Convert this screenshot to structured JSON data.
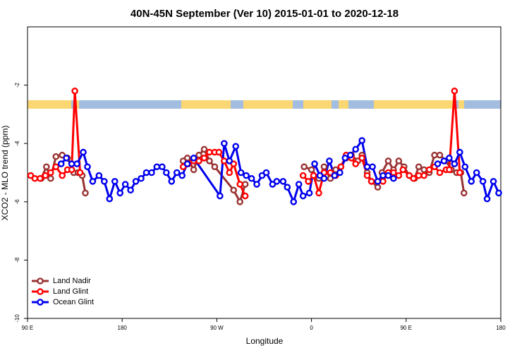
{
  "chart_data": {
    "type": "line",
    "title": "40N-45N September (Ver 10)   2015-01-01 to 2020-12-18",
    "xlabel": "Longitude",
    "ylabel": "XCO2 - MLO trend (ppm)",
    "xlim": [
      90,
      540
    ],
    "xticks": [
      {
        "value": 90,
        "label": "90 E"
      },
      {
        "value": 180,
        "label": "180"
      },
      {
        "value": 270,
        "label": "90 W"
      },
      {
        "value": 360,
        "label": "0"
      },
      {
        "value": 450,
        "label": "90 E"
      },
      {
        "value": 540,
        "label": "180"
      }
    ],
    "ylim": [
      -10,
      0
    ],
    "yticks": [
      -10,
      -8,
      -6,
      -4,
      -2
    ],
    "legend": "bottom-left",
    "series": [
      {
        "name": "Land Nadir",
        "color": "#993333",
        "x": [
          103,
          108,
          112,
          117,
          123,
          128,
          134,
          138,
          142,
          145,
          null,
          238,
          242,
          248,
          253,
          258,
          263,
          268,
          286,
          292,
          297,
          null,
          353,
          360,
          367,
          372,
          378,
          383,
          388,
          393,
          398,
          404,
          408,
          413,
          417,
          423,
          427,
          433,
          438,
          443,
          448,
          453,
          458,
          462,
          467,
          472,
          477,
          482,
          488,
          493,
          498,
          502,
          505
        ],
        "values": [
          -5.2,
          -4.8,
          -5.2,
          -4.45,
          -4.4,
          -4.5,
          -5.0,
          -5.0,
          -5.1,
          -5.7,
          null,
          -4.6,
          -4.5,
          -4.9,
          -4.4,
          -4.2,
          -4.6,
          -4.8,
          -5.6,
          -6.0,
          -5.4,
          null,
          -4.8,
          -4.9,
          -5.2,
          -4.8,
          -5.2,
          -4.9,
          -4.8,
          -4.5,
          -4.4,
          -4.6,
          -4.4,
          -5.0,
          -5.3,
          -5.5,
          -5.0,
          -4.6,
          -4.9,
          -4.6,
          -4.8,
          -5.1,
          -5.2,
          -4.8,
          -4.9,
          -5.0,
          -4.4,
          -4.4,
          -4.6,
          -4.9,
          -5.0,
          -5.0,
          -5.7
        ]
      },
      {
        "name": "Land Glint",
        "color": "#ff0000",
        "x": [
          93,
          97,
          102,
          107,
          112,
          117,
          123,
          128,
          132,
          135,
          140,
          null,
          238,
          243,
          248,
          253,
          258,
          263,
          268,
          272,
          277,
          282,
          286,
          292,
          297,
          null,
          352,
          357,
          362,
          367,
          372,
          378,
          383,
          388,
          393,
          398,
          402,
          408,
          413,
          417,
          423,
          428,
          433,
          438,
          443,
          447,
          453,
          457,
          462,
          467,
          472,
          477,
          482,
          488,
          491,
          496,
          501
        ],
        "values": [
          -5.1,
          -5.2,
          -5.2,
          -5.1,
          -5.0,
          -4.8,
          -5.1,
          -4.9,
          -4.9,
          -2.2,
          -5.0,
          null,
          -4.8,
          -4.7,
          -4.6,
          -4.6,
          -4.5,
          -4.3,
          -4.3,
          -4.3,
          -4.6,
          -5.0,
          -4.7,
          -5.4,
          -5.8,
          null,
          -5.1,
          -5.3,
          -5.1,
          -5.7,
          -5.0,
          -5.0,
          -5.1,
          -4.8,
          -4.4,
          -4.5,
          -4.7,
          -4.5,
          -5.1,
          -5.3,
          -5.3,
          -5.3,
          -5.0,
          -5.0,
          -5.1,
          -4.9,
          -5.1,
          -5.2,
          -5.1,
          -5.1,
          -4.9,
          -4.8,
          -5.0,
          -4.9,
          -4.9,
          -2.2,
          -5.0
        ]
      },
      {
        "name": "Ocean Glint",
        "color": "#0000ee",
        "x": [
          122,
          127,
          132,
          137,
          143,
          147,
          152,
          158,
          163,
          168,
          173,
          178,
          183,
          188,
          193,
          198,
          203,
          208,
          213,
          218,
          222,
          227,
          232,
          237,
          242,
          248,
          273,
          277,
          282,
          288,
          293,
          298,
          303,
          308,
          313,
          317,
          323,
          327,
          333,
          337,
          343,
          348,
          352,
          358,
          363,
          368,
          372,
          377,
          382,
          387,
          392,
          397,
          402,
          408,
          413,
          418,
          423,
          428,
          433,
          438,
          null,
          480,
          486,
          491,
          496,
          501,
          506,
          512,
          517,
          523,
          527,
          533,
          538
        ],
        "values": [
          -4.7,
          -4.5,
          -4.7,
          -4.7,
          -4.3,
          -4.8,
          -5.3,
          -5.1,
          -5.3,
          -5.9,
          -5.3,
          -5.7,
          -5.4,
          -5.6,
          -5.3,
          -5.2,
          -5.0,
          -5.0,
          -4.8,
          -4.8,
          -5.0,
          -5.3,
          -5.0,
          -5.1,
          -4.7,
          -4.5,
          -5.8,
          -4.0,
          -4.6,
          -4.1,
          -5.0,
          -5.1,
          -5.2,
          -5.4,
          -5.1,
          -5.0,
          -5.4,
          -5.3,
          -5.3,
          -5.5,
          -6.0,
          -5.4,
          -5.8,
          -5.7,
          -4.7,
          -5.1,
          -5.2,
          -4.6,
          -5.1,
          -5.0,
          -4.5,
          -4.4,
          -4.2,
          -3.9,
          -4.8,
          -4.8,
          -5.3,
          -5.1,
          -5.1,
          -5.2,
          null,
          -4.7,
          -4.6,
          -4.5,
          -4.7,
          -4.3,
          -4.8,
          -5.3,
          -5.0,
          -5.3,
          -5.9,
          -5.3,
          -5.7
        ]
      }
    ]
  }
}
